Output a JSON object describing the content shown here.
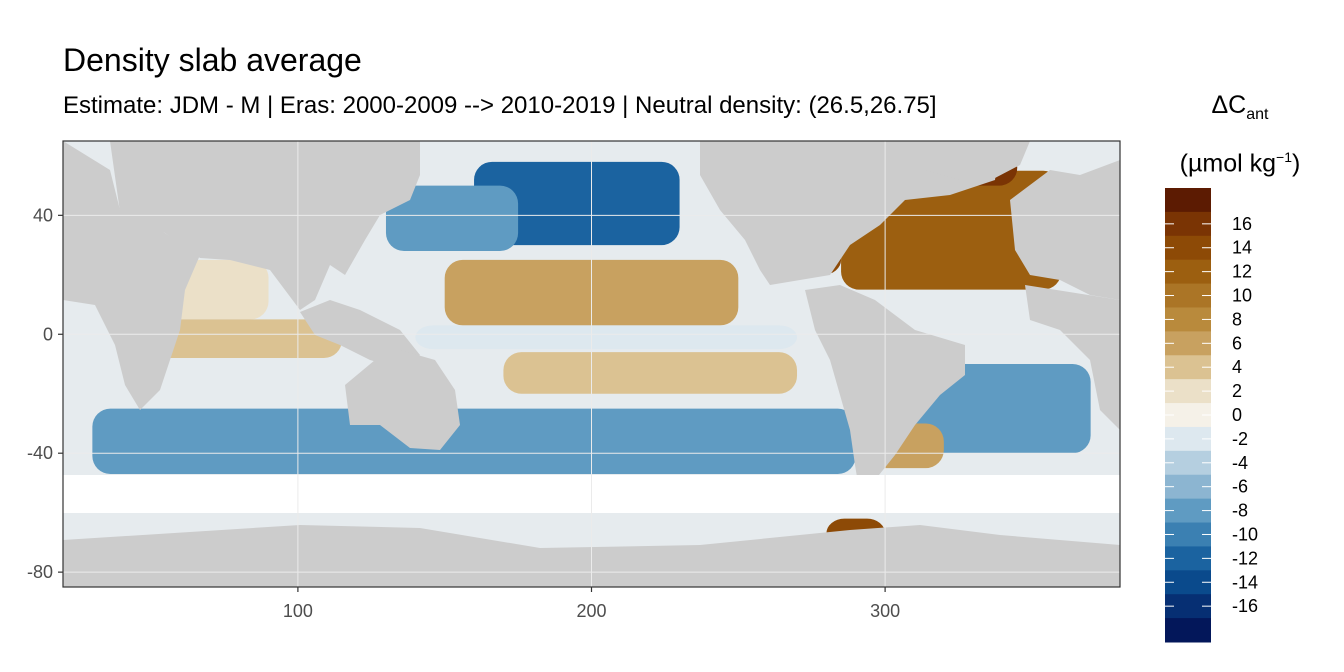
{
  "title": "Density slab average",
  "subtitle": "Estimate: JDM - M | Eras: 2000-2009 --> 2010-2019 | Neutral density: (26.5,26.75]",
  "legend": {
    "title_symbol": "ΔC",
    "title_sub": "ant",
    "unit_open": "(µmol kg",
    "unit_sup": "−1",
    "unit_close": ")",
    "ticks": [
      "16",
      "14",
      "12",
      "10",
      "8",
      "6",
      "4",
      "2",
      "0",
      "-2",
      "-4",
      "-6",
      "-8",
      "-10",
      "-12",
      "-14",
      "-16"
    ],
    "colors": [
      "#5c1b02",
      "#7a3404",
      "#8d4a06",
      "#9c5f10",
      "#ab7526",
      "#b98a3c",
      "#c8a160",
      "#dbc292",
      "#ebe0c8",
      "#f5f1e8",
      "#dde8ef",
      "#b5cfe0",
      "#8cb5d1",
      "#5f9bc2",
      "#3b80b2",
      "#1b63a0",
      "#0a4a8c",
      "#062f73",
      "#03175a"
    ],
    "palette_id": "BrBG-reversed-diverging"
  },
  "chart_data": {
    "type": "heatmap",
    "xlim": [
      20,
      380
    ],
    "ylim": [
      -85,
      65
    ],
    "x_ticks": [
      100,
      200,
      300
    ],
    "y_ticks": [
      40,
      0,
      -40,
      -80
    ],
    "x_tick_labels": [
      "100",
      "200",
      "300"
    ],
    "y_tick_labels": [
      "40",
      "0",
      "-40",
      "-80"
    ],
    "grid": true,
    "value_range": [
      -17,
      17
    ],
    "land_color": "#cccccc",
    "regions": [
      {
        "name": "north-pacific-blue",
        "lon": [
          160,
          230
        ],
        "lat": [
          30,
          58
        ],
        "value": -10
      },
      {
        "name": "kuroshio-blue",
        "lon": [
          130,
          175
        ],
        "lat": [
          28,
          50
        ],
        "value": -8
      },
      {
        "name": "subtropical-north-pacific-tan",
        "lon": [
          150,
          250
        ],
        "lat": [
          3,
          25
        ],
        "value": 5
      },
      {
        "name": "equatorial-pacific-light",
        "lon": [
          140,
          270
        ],
        "lat": [
          -5,
          3
        ],
        "value": -2
      },
      {
        "name": "south-pacific-tan",
        "lon": [
          170,
          270
        ],
        "lat": [
          -20,
          -6
        ],
        "value": 4
      },
      {
        "name": "southern-ocean-blue",
        "lon": [
          30,
          290
        ],
        "lat": [
          -47,
          -25
        ],
        "value": -8
      },
      {
        "name": "arabian-sea-tan",
        "lon": [
          40,
          90
        ],
        "lat": [
          5,
          25
        ],
        "value": 2
      },
      {
        "name": "indian-ocean-tan",
        "lon": [
          50,
          115
        ],
        "lat": [
          -8,
          5
        ],
        "value": 4
      },
      {
        "name": "north-atlantic-tan",
        "lon": [
          285,
          360
        ],
        "lat": [
          15,
          55
        ],
        "value": 10
      },
      {
        "name": "labrador-sea-brown",
        "lon": [
          320,
          345
        ],
        "lat": [
          50,
          62
        ],
        "value": 14
      },
      {
        "name": "gulf-of-mexico-brown",
        "lon": [
          265,
          285
        ],
        "lat": [
          20,
          30
        ],
        "value": 12
      },
      {
        "name": "south-atlantic-blue",
        "lon": [
          310,
          370
        ],
        "lat": [
          -40,
          -10
        ],
        "value": -8
      },
      {
        "name": "argentine-basin-tan",
        "lon": [
          290,
          320
        ],
        "lat": [
          -45,
          -30
        ],
        "value": 6
      },
      {
        "name": "weddell-coast-brown",
        "lon": [
          280,
          300
        ],
        "lat": [
          -72,
          -62
        ],
        "value": 12
      }
    ]
  }
}
